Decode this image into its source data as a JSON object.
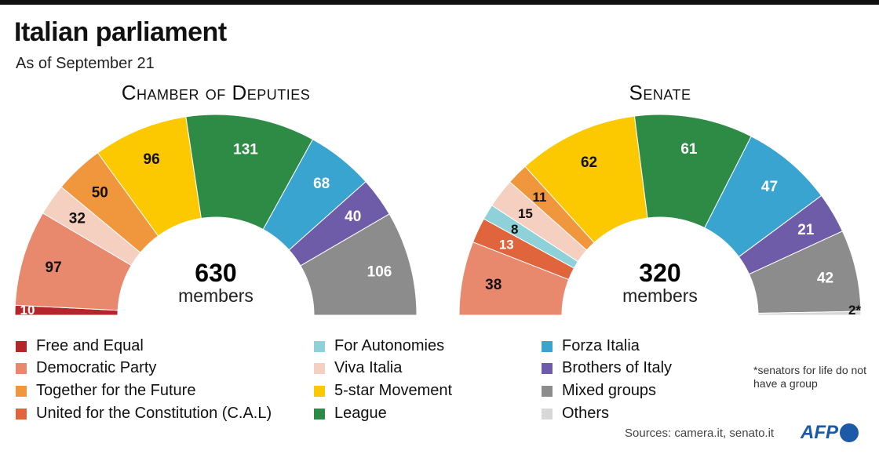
{
  "title": "Italian parliament",
  "subtitle": "As of September 21",
  "colors": {
    "free_equal": "#b3262a",
    "democratic": "#e8896e",
    "together": "#f0963c",
    "cal": "#e0643c",
    "autonomies": "#8fd1d8",
    "viva": "#f5cfc0",
    "five_star": "#fcc800",
    "league": "#2e8b45",
    "forza": "#3aa4d0",
    "brothers": "#6f5ca8",
    "mixed": "#8c8c8c",
    "others": "#d8d8d8"
  },
  "chart_data": [
    {
      "type": "pie",
      "subtype": "hemicycle",
      "title": "Chamber of Deputies",
      "total": "630",
      "total_label": "members",
      "slices": [
        {
          "key": "free_equal",
          "value": 10,
          "label": "10"
        },
        {
          "key": "democratic",
          "value": 97,
          "label": "97"
        },
        {
          "key": "viva",
          "value": 32,
          "label": "32"
        },
        {
          "key": "together",
          "value": 50,
          "label": "50"
        },
        {
          "key": "five_star",
          "value": 96,
          "label": "96"
        },
        {
          "key": "league",
          "value": 131,
          "label": "131"
        },
        {
          "key": "forza",
          "value": 68,
          "label": "68"
        },
        {
          "key": "brothers",
          "value": 40,
          "label": "40"
        },
        {
          "key": "mixed",
          "value": 106,
          "label": "106"
        }
      ]
    },
    {
      "type": "pie",
      "subtype": "hemicycle",
      "title": "Senate",
      "total": "320",
      "total_label": "members",
      "slices": [
        {
          "key": "democratic",
          "value": 38,
          "label": "38"
        },
        {
          "key": "cal",
          "value": 13,
          "label": "13"
        },
        {
          "key": "autonomies",
          "value": 8,
          "label": "8"
        },
        {
          "key": "viva",
          "value": 15,
          "label": "15"
        },
        {
          "key": "together",
          "value": 11,
          "label": "11"
        },
        {
          "key": "five_star",
          "value": 62,
          "label": "62"
        },
        {
          "key": "league",
          "value": 61,
          "label": "61"
        },
        {
          "key": "forza",
          "value": 47,
          "label": "47"
        },
        {
          "key": "brothers",
          "value": 21,
          "label": "21"
        },
        {
          "key": "mixed",
          "value": 42,
          "label": "42"
        },
        {
          "key": "others",
          "value": 2,
          "label": "2*"
        }
      ]
    }
  ],
  "legend": [
    {
      "key": "free_equal",
      "label": "Free and Equal"
    },
    {
      "key": "democratic",
      "label": "Democratic Party"
    },
    {
      "key": "together",
      "label": "Together for the Future"
    },
    {
      "key": "cal",
      "label": "United for the Constitution (C.A.L)"
    },
    {
      "key": "autonomies",
      "label": "For Autonomies"
    },
    {
      "key": "viva",
      "label": "Viva Italia"
    },
    {
      "key": "five_star",
      "label": "5-star Movement"
    },
    {
      "key": "league",
      "label": "League"
    },
    {
      "key": "forza",
      "label": "Forza Italia"
    },
    {
      "key": "brothers",
      "label": "Brothers of Italy"
    },
    {
      "key": "mixed",
      "label": "Mixed groups"
    },
    {
      "key": "others",
      "label": "Others"
    }
  ],
  "note": "*senators for life do not have a group",
  "source": "Sources: camera.it, senato.it",
  "logo": "AFP"
}
